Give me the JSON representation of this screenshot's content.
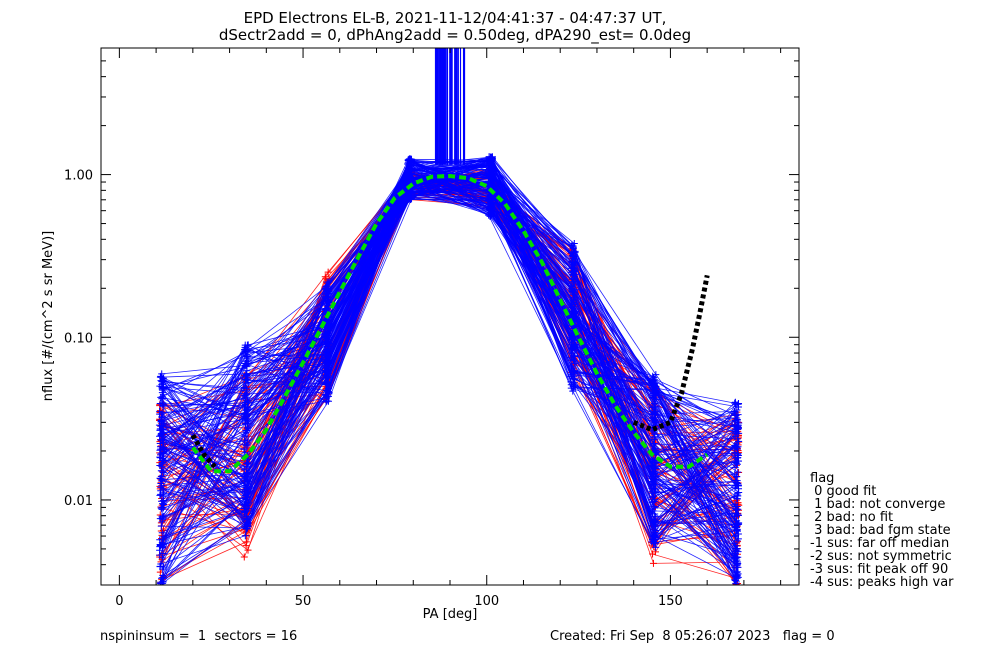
{
  "chart_data": {
    "type": "line",
    "title_lines": [
      "EPD Electrons EL-B, 2021-11-12/04:41:37 - 04:47:37 UT,",
      "dSectr2add = 0, dPhAng2add = 0.50deg, dPA290_est=    0.0deg"
    ],
    "xlabel": "PA [deg]",
    "ylabel": "nflux [#/(cm^2 s sr MeV)]",
    "xlim": [
      -5,
      185
    ],
    "ylim": [
      0.003,
      6
    ],
    "yscale": "log",
    "x_ticks": [
      0,
      50,
      100,
      150
    ],
    "x_tick_labels": [
      "0",
      "50",
      "100",
      "150"
    ],
    "y_ticks": [
      0.01,
      0.1,
      1.0
    ],
    "y_tick_labels": [
      "0.01",
      "0.10",
      "1.00"
    ],
    "grid": false,
    "pa_bins": [
      11.5,
      34.5,
      56.5,
      79,
      101,
      123.5,
      145.5,
      168
    ],
    "series": [
      {
        "name": "",
        "color": "#0000ff",
        "marker": "+",
        "bands": [
          [
            0.003,
            0.06
          ],
          [
            0.006,
            0.09
          ],
          [
            0.04,
            0.22
          ],
          [
            0.7,
            1.25
          ],
          [
            0.55,
            1.3
          ],
          [
            0.045,
            0.38
          ],
          [
            0.005,
            0.06
          ],
          [
            0.003,
            0.04
          ]
        ]
      },
      {
        "name": "",
        "color": "#ff0000",
        "marker": "+",
        "bands": [
          [
            0.003,
            0.04
          ],
          [
            0.004,
            0.06
          ],
          [
            0.04,
            0.27
          ],
          [
            0.7,
            1.05
          ],
          [
            0.6,
            1.1
          ],
          [
            0.06,
            0.35
          ],
          [
            0.004,
            0.05
          ],
          [
            0.003,
            0.035
          ]
        ]
      },
      {
        "name": "",
        "color": "#0000ff",
        "style": "saturated",
        "x_range": [
          86,
          94
        ],
        "y_range": [
          1.15,
          6
        ]
      },
      {
        "name": "",
        "color": "#00dd00",
        "style": "dashed-fit",
        "x": [
          20,
          25,
          30,
          35,
          40,
          45,
          50,
          55,
          60,
          65,
          70,
          75,
          80,
          85,
          90,
          95,
          100,
          105,
          110,
          115,
          120,
          125,
          130,
          135,
          140,
          145,
          150,
          155,
          160
        ],
        "y": [
          0.021,
          0.015,
          0.015,
          0.019,
          0.027,
          0.043,
          0.07,
          0.115,
          0.19,
          0.31,
          0.5,
          0.72,
          0.88,
          0.97,
          0.98,
          0.95,
          0.85,
          0.66,
          0.45,
          0.29,
          0.17,
          0.1,
          0.06,
          0.038,
          0.026,
          0.019,
          0.016,
          0.016,
          0.019
        ]
      },
      {
        "name": "",
        "color": "#000000",
        "style": "dotted-fit",
        "x": [
          20,
          23,
          26,
          140,
          145,
          150,
          153,
          156,
          158,
          160
        ],
        "y": [
          0.025,
          0.019,
          0.016,
          0.03,
          0.027,
          0.03,
          0.045,
          0.085,
          0.14,
          0.24
        ]
      }
    ],
    "legend": {
      "title": "flag",
      "placement": "outside-bottom-right",
      "entries": [
        " 0 good fit",
        " 1 bad: not converge",
        " 2 bad: no fit",
        " 3 bad: bad fgm state",
        "-1 sus: far off median",
        "-2 sus: not symmetric",
        "-3 sus: fit peak off 90",
        "-4 sus: peaks high var"
      ]
    }
  },
  "footer": {
    "left": "nspininsum =  1  sectors = 16",
    "right": "Created: Fri Sep  8 05:26:07 2023   flag = 0"
  }
}
